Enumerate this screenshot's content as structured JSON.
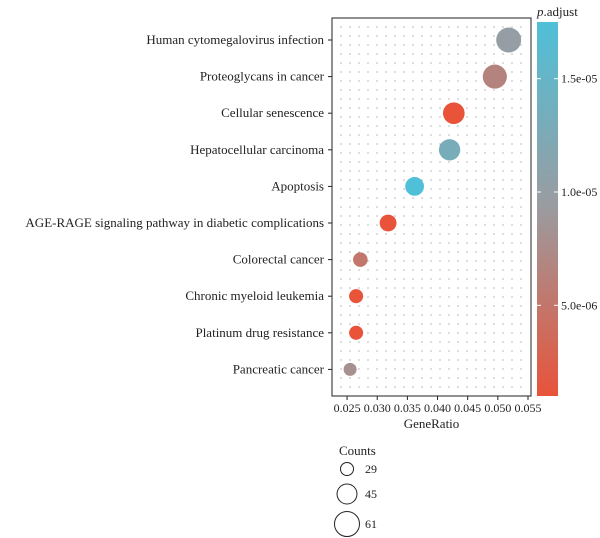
{
  "chart_data": {
    "type": "scatter",
    "title": "",
    "xlabel": "GeneRatio",
    "ylabel": "",
    "xlim": [
      0.0225,
      0.0555
    ],
    "x_ticks": [
      0.025,
      0.03,
      0.035,
      0.04,
      0.045,
      0.05,
      0.055
    ],
    "x_tick_labels": [
      "0.025",
      "0.030",
      "0.035",
      "0.040",
      "0.045",
      "0.050",
      "0.055"
    ],
    "categories": [
      "Human cytomegalovirus infection",
      "Proteoglycans in cancer",
      "Cellular senescence",
      "Hepatocellular carcinoma",
      "Apoptosis",
      "AGE-RAGE signaling pathway in diabetic complications",
      "Colorectal cancer",
      "Chronic myeloid leukemia",
      "Platinum drug resistance",
      "Pancreatic cancer"
    ],
    "points": [
      {
        "category": "Human cytomegalovirus infection",
        "gene_ratio": 0.0518,
        "count": 61,
        "p_adjust": 1e-05
      },
      {
        "category": "Proteoglycans in cancer",
        "gene_ratio": 0.0495,
        "count": 58,
        "p_adjust": 6.5e-06
      },
      {
        "category": "Cellular senescence",
        "gene_ratio": 0.0427,
        "count": 50,
        "p_adjust": 1e-06
      },
      {
        "category": "Hepatocellular carcinoma",
        "gene_ratio": 0.042,
        "count": 49,
        "p_adjust": 1.3e-05
      },
      {
        "category": "Apoptosis",
        "gene_ratio": 0.0362,
        "count": 42,
        "p_adjust": 1.75e-05
      },
      {
        "category": "AGE-RAGE signaling pathway in diabetic complications",
        "gene_ratio": 0.0318,
        "count": 37,
        "p_adjust": 1e-06
      },
      {
        "category": "Colorectal cancer",
        "gene_ratio": 0.0272,
        "count": 32,
        "p_adjust": 5e-06
      },
      {
        "category": "Chronic myeloid leukemia",
        "gene_ratio": 0.0265,
        "count": 31,
        "p_adjust": 1e-06
      },
      {
        "category": "Platinum drug resistance",
        "gene_ratio": 0.0265,
        "count": 31,
        "p_adjust": 1e-06
      },
      {
        "category": "Pancreatic cancer",
        "gene_ratio": 0.0255,
        "count": 29,
        "p_adjust": 8e-06
      }
    ],
    "grid": true,
    "color_legend": {
      "title_prefix": "p",
      "title_suffix": ".adjust",
      "range": [
        1e-06,
        1.75e-05
      ],
      "low_color": "#e8533a",
      "mid_color": "#9b9b9f",
      "high_color": "#4fc0d8",
      "ticks": [
        5e-06,
        1e-05,
        1.5e-05
      ],
      "tick_labels": [
        "5.0e-06",
        "1.0e-05",
        "1.5e-05"
      ],
      "placement": "right"
    },
    "size_legend": {
      "title": "Counts",
      "values": [
        29,
        45,
        61
      ],
      "labels": [
        "29",
        "45",
        "61"
      ],
      "placement": "bottom"
    }
  }
}
